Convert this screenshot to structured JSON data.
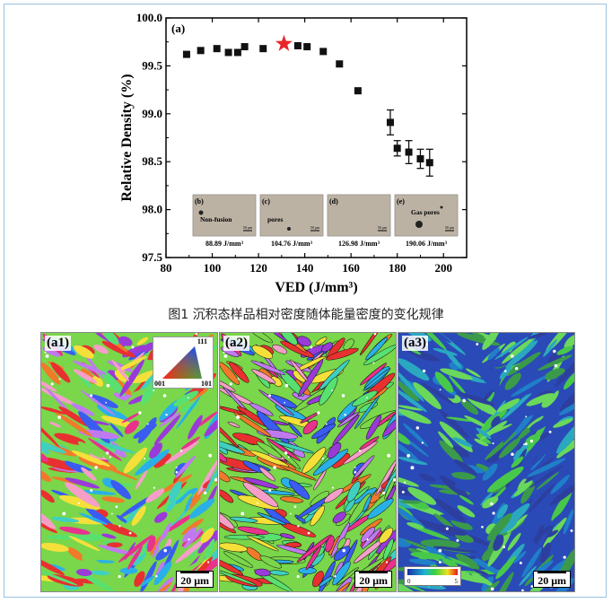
{
  "chart_data": {
    "type": "scatter",
    "panel_label": "(a)",
    "xlabel": "VED (J/mm³)",
    "ylabel": "Relative Density (%)",
    "xlim": [
      80,
      210
    ],
    "ylim": [
      97.5,
      100.0
    ],
    "xticks": [
      "80",
      "100",
      "120",
      "140",
      "160",
      "180",
      "200"
    ],
    "yticks": [
      "97.5",
      "98.0",
      "98.5",
      "99.0",
      "99.5",
      "100.0"
    ],
    "points": [
      {
        "x": 88.9,
        "y": 99.62
      },
      {
        "x": 95,
        "y": 99.66
      },
      {
        "x": 102,
        "y": 99.68
      },
      {
        "x": 107,
        "y": 99.64
      },
      {
        "x": 111,
        "y": 99.64
      },
      {
        "x": 114,
        "y": 99.7
      },
      {
        "x": 122,
        "y": 99.68
      },
      {
        "x": 137,
        "y": 99.71
      },
      {
        "x": 141,
        "y": 99.7
      },
      {
        "x": 148,
        "y": 99.65
      },
      {
        "x": 155,
        "y": 99.52
      },
      {
        "x": 163,
        "y": 99.24
      },
      {
        "x": 177,
        "y": 98.91,
        "err": 0.13
      },
      {
        "x": 180,
        "y": 98.64,
        "err": 0.08
      },
      {
        "x": 185,
        "y": 98.6,
        "err": 0.12
      },
      {
        "x": 190,
        "y": 98.53,
        "err": 0.1
      },
      {
        "x": 194,
        "y": 98.49,
        "err": 0.14
      }
    ],
    "highlight": {
      "x": 131,
      "y": 99.73,
      "marker": "star",
      "color": "#e8262a"
    },
    "insets": [
      {
        "label": "(b)",
        "annotation": "Non-fusion",
        "caption": "88.89 J/mm³",
        "scale": "50 μm"
      },
      {
        "label": "(c)",
        "annotation": "pores",
        "caption": "104.76 J/mm³",
        "scale": "50 μm"
      },
      {
        "label": "(d)",
        "annotation": "",
        "caption": "126.98 J/mm³",
        "scale": "50 μm"
      },
      {
        "label": "(e)",
        "annotation": "Gas pores",
        "caption": "190.06 J/mm³",
        "scale": "50 μm"
      }
    ],
    "grid": false
  },
  "figure1_caption": "图1 沉积态样品相对密度随体能量密度的变化规律",
  "ebsd_panels": [
    {
      "label": "(a1)",
      "scale": "20 μm",
      "ipf_labels": {
        "top": "111",
        "left": "001",
        "right": "101"
      }
    },
    {
      "label": "(a2)",
      "scale": "20 μm"
    },
    {
      "label": "(a3)",
      "scale": "20 μm",
      "colorbar_min": "0",
      "colorbar_max": "5"
    }
  ],
  "colors": {
    "marker": "#111111",
    "star": "#e8262a",
    "frame": "#9bc3df"
  }
}
